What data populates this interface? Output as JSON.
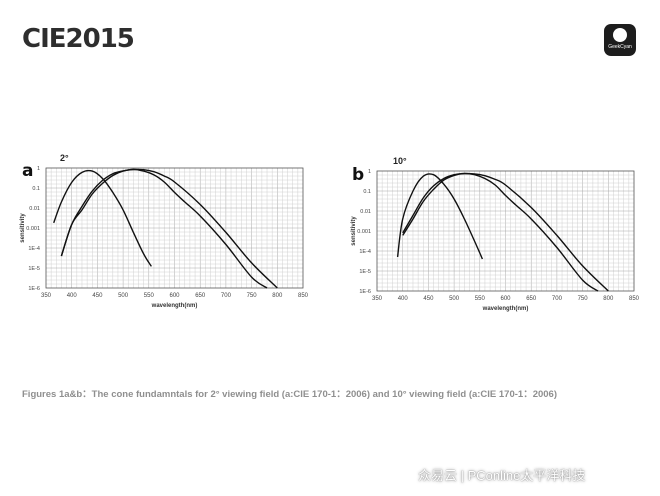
{
  "header": {
    "title": "CIE2015",
    "logo_text": "GeekCyan"
  },
  "caption": "Figures 1a&b：The cone fundamntals for 2° viewing field (a:CIE 170-1：2006) and 10° viewing field (a:CIE 170-1：2006)",
  "watermark": "众易云 | PConline太平洋科技",
  "chart_data": [
    {
      "type": "line",
      "panel_label": "a",
      "title": "2°",
      "xlabel": "wavelength(nm)",
      "ylabel": "sensitivity",
      "x_ticks": [
        350,
        400,
        450,
        500,
        550,
        600,
        650,
        700,
        750,
        800,
        850
      ],
      "y_tick_labels": [
        "1",
        "0.1",
        "0.01",
        "0.001",
        "1E-4",
        "1E-5",
        "1E-6"
      ],
      "xlim": [
        350,
        850
      ],
      "ylim": [
        1e-06,
        1
      ],
      "y_scale": "log",
      "grid": true,
      "series": [
        {
          "x": [
            365,
            380,
            400,
            420,
            440,
            460,
            480,
            500,
            520,
            540,
            555
          ],
          "y": [
            0.0018,
            0.02,
            0.19,
            0.6,
            0.7,
            0.3,
            0.06,
            0.008,
            0.0006,
            5e-05,
            1.2e-05
          ]
        },
        {
          "x": [
            380,
            400,
            420,
            440,
            460,
            480,
            500,
            520,
            540,
            560,
            580,
            600,
            620,
            650,
            700,
            750,
            780
          ],
          "y": [
            4e-05,
            0.0015,
            0.008,
            0.05,
            0.17,
            0.42,
            0.7,
            0.85,
            0.7,
            0.45,
            0.2,
            0.06,
            0.02,
            0.004,
            0.00015,
            3.5e-06,
            1e-06
          ]
        },
        {
          "x": [
            380,
            400,
            420,
            440,
            460,
            480,
            500,
            520,
            540,
            560,
            580,
            600,
            650,
            700,
            750,
            800
          ],
          "y": [
            4e-05,
            0.0015,
            0.012,
            0.07,
            0.24,
            0.52,
            0.72,
            0.84,
            0.82,
            0.65,
            0.4,
            0.2,
            0.015,
            0.0006,
            1.8e-05,
            1e-06
          ]
        }
      ]
    },
    {
      "type": "line",
      "panel_label": "b",
      "title": "10°",
      "xlabel": "wavelength(nm)",
      "ylabel": "sensitivity",
      "x_ticks": [
        350,
        400,
        450,
        500,
        550,
        600,
        650,
        700,
        750,
        800,
        850
      ],
      "y_tick_labels": [
        "1",
        "0.1",
        "0.01",
        "0.001",
        "1E-4",
        "1E-5",
        "1E-6"
      ],
      "xlim": [
        350,
        850
      ],
      "ylim": [
        1e-06,
        1
      ],
      "y_scale": "log",
      "grid": true,
      "series": [
        {
          "x": [
            390,
            400,
            420,
            440,
            460,
            480,
            500,
            520,
            540,
            555
          ],
          "y": [
            5e-05,
            0.004,
            0.1,
            0.55,
            0.65,
            0.22,
            0.04,
            0.004,
            0.0003,
            4e-05
          ]
        },
        {
          "x": [
            400,
            420,
            440,
            460,
            480,
            500,
            520,
            540,
            560,
            580,
            600,
            620,
            650,
            700,
            750,
            780
          ],
          "y": [
            0.0006,
            0.004,
            0.03,
            0.12,
            0.35,
            0.6,
            0.75,
            0.65,
            0.42,
            0.2,
            0.06,
            0.02,
            0.004,
            0.00015,
            3.5e-06,
            1e-06
          ]
        },
        {
          "x": [
            400,
            420,
            440,
            460,
            480,
            500,
            520,
            540,
            560,
            580,
            600,
            650,
            700,
            750,
            800
          ],
          "y": [
            0.0008,
            0.006,
            0.045,
            0.18,
            0.42,
            0.65,
            0.74,
            0.72,
            0.58,
            0.38,
            0.2,
            0.015,
            0.0006,
            1.8e-05,
            1e-06
          ]
        }
      ]
    }
  ]
}
